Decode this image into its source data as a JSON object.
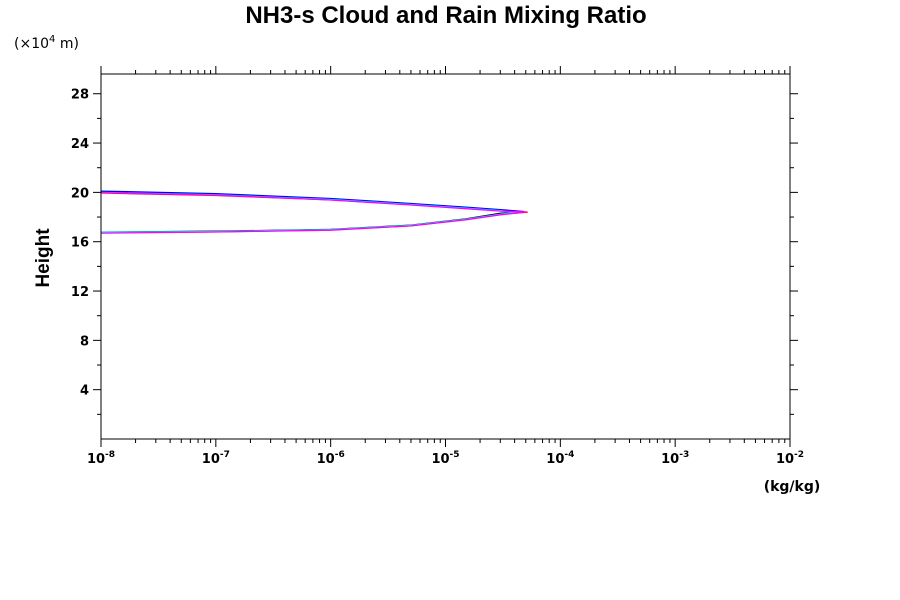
{
  "chart_data": {
    "type": "line",
    "title": "NH3-s Cloud and Rain Mixing Ratio",
    "ylabel": "Height",
    "y_scale_note": {
      "prefix": "(×10",
      "exponent": "4",
      "suffix": " m)"
    },
    "xunit": "(kg/kg)",
    "xscale": "log",
    "xlim": [
      1e-08,
      0.01
    ],
    "ylim": [
      0,
      29.6
    ],
    "x_ticks": [
      {
        "base": "10",
        "exp": "-8",
        "value": 1e-08
      },
      {
        "base": "10",
        "exp": "-7",
        "value": 1e-07
      },
      {
        "base": "10",
        "exp": "-6",
        "value": 1e-06
      },
      {
        "base": "10",
        "exp": "-5",
        "value": 1e-05
      },
      {
        "base": "10",
        "exp": "-4",
        "value": 0.0001
      },
      {
        "base": "10",
        "exp": "-3",
        "value": 0.001
      },
      {
        "base": "10",
        "exp": "-2",
        "value": 0.01
      }
    ],
    "y_ticks": [
      "4",
      "8",
      "12",
      "16",
      "20",
      "24",
      "28"
    ],
    "grid": false,
    "series": [
      {
        "color": "#000000",
        "x": [
          1e-08,
          1e-07,
          1e-06,
          5e-06,
          1.5e-05,
          3e-05,
          4.5e-05,
          3e-05,
          1.5e-05,
          5e-06,
          1e-06,
          1e-07,
          1e-08
        ],
        "y": [
          20.05,
          19.85,
          19.45,
          19.05,
          18.75,
          18.55,
          18.4,
          18.3,
          17.85,
          17.35,
          17.0,
          16.85,
          16.78
        ]
      },
      {
        "color": "#ff0000",
        "x": [
          1e-08,
          1e-07,
          1e-06,
          5e-06,
          1.5e-05,
          3e-05,
          5.2e-05,
          3e-05,
          1.5e-05,
          5e-06,
          1e-06,
          1e-07,
          1e-08
        ],
        "y": [
          19.95,
          19.75,
          19.4,
          19.0,
          18.7,
          18.5,
          18.4,
          18.2,
          17.8,
          17.3,
          16.95,
          16.8,
          16.72
        ]
      },
      {
        "color": "#0000ff",
        "x": [
          1e-08,
          1e-07,
          1e-06,
          5e-06,
          1.5e-05,
          3e-05,
          4.8e-05,
          3e-05,
          1.5e-05,
          5e-06,
          1e-06,
          1e-07,
          1e-08
        ],
        "y": [
          20.1,
          19.9,
          19.5,
          19.1,
          18.8,
          18.6,
          18.45,
          18.25,
          17.8,
          17.3,
          16.98,
          16.82,
          16.75
        ]
      },
      {
        "color": "#00ffff",
        "x": [
          1e-08,
          1e-07,
          1e-06,
          5e-06,
          1.5e-05,
          3e-05,
          4.2e-05,
          3e-05,
          1.5e-05,
          5e-06,
          1e-06,
          1e-07,
          1e-08
        ],
        "y": [
          20.0,
          19.8,
          19.42,
          19.02,
          18.72,
          18.52,
          18.38,
          18.22,
          17.82,
          17.32,
          16.97,
          16.83,
          16.76
        ]
      },
      {
        "color": "#ff00ff",
        "x": [
          1e-08,
          1e-07,
          1e-06,
          5e-06,
          1.5e-05,
          3e-05,
          5e-05,
          3e-05,
          1.5e-05,
          5e-06,
          1e-06,
          1e-07,
          1e-08
        ],
        "y": [
          19.98,
          19.78,
          19.38,
          18.98,
          18.68,
          18.48,
          18.42,
          18.18,
          17.78,
          17.28,
          16.93,
          16.79,
          16.7
        ]
      }
    ]
  }
}
